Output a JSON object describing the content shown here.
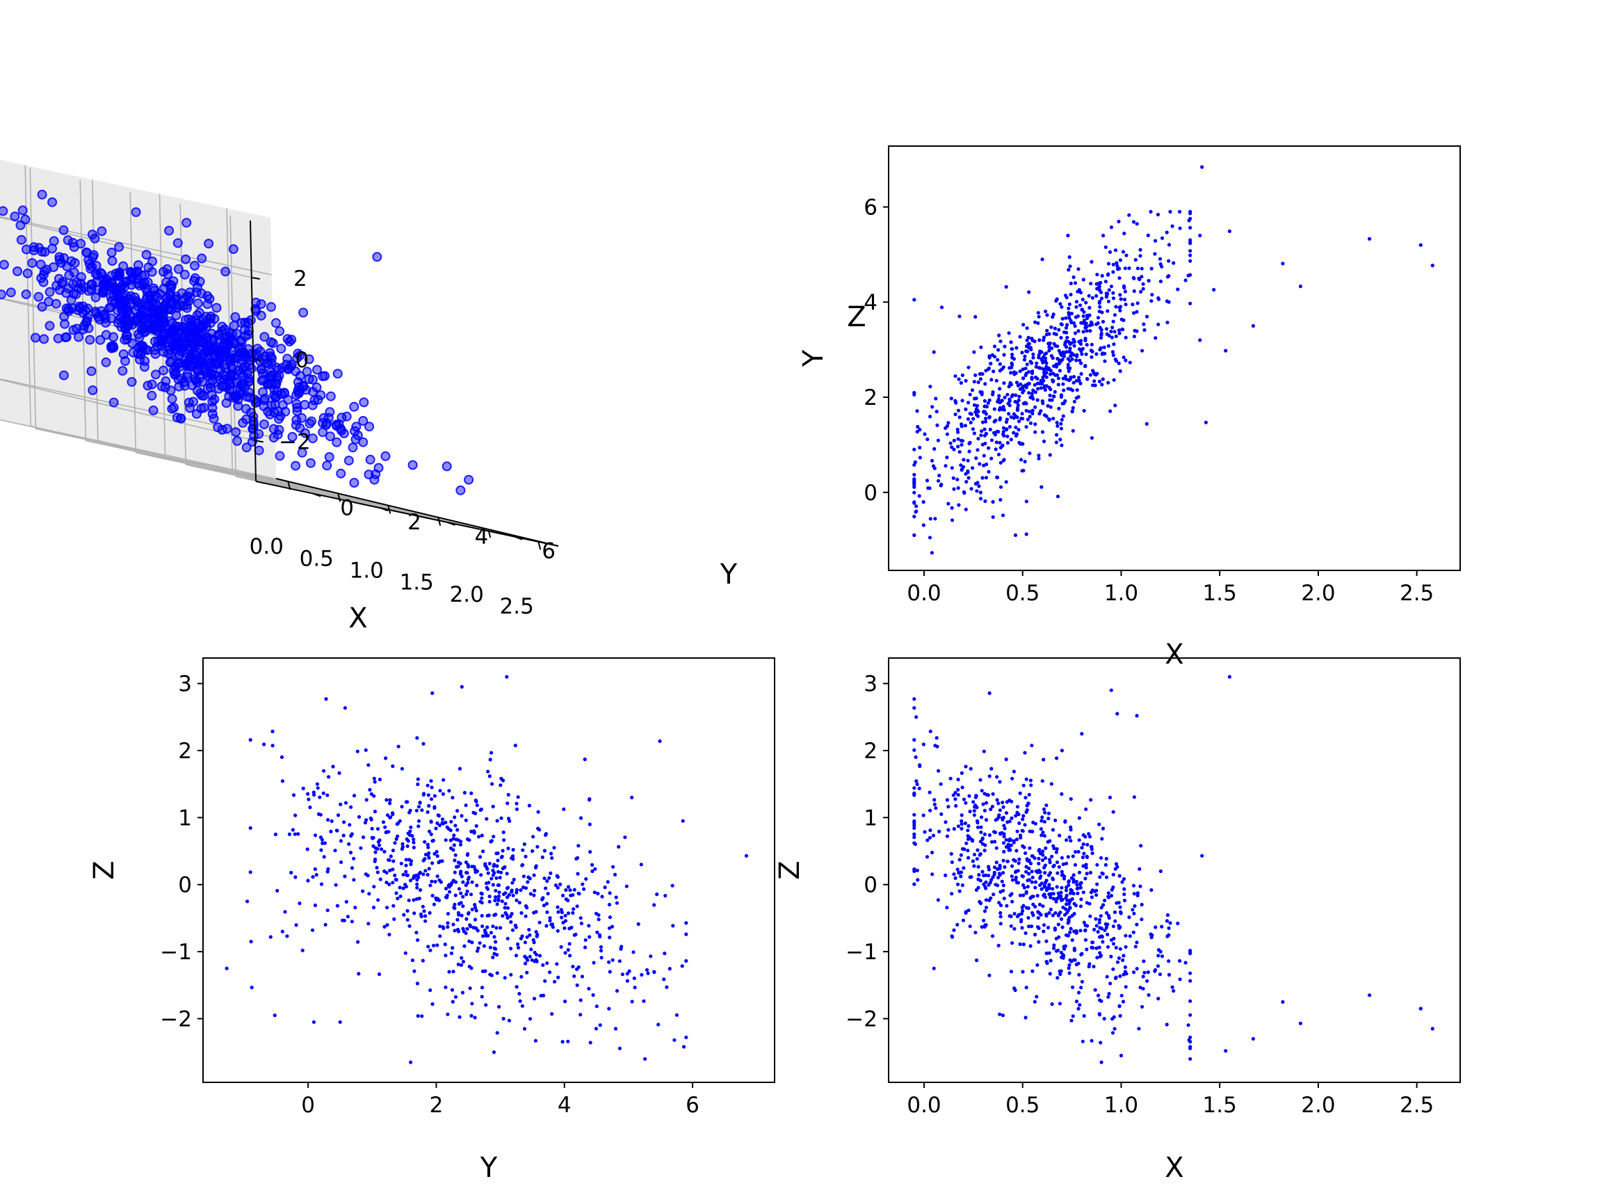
{
  "figure": {
    "background": "#ffffff",
    "point_color": "#0000ff",
    "axis_color": "#000000",
    "pane_color": "#f2f2f2",
    "grid_color": "#b0b0b0"
  },
  "chart_data": [
    {
      "id": "panel-3d",
      "type": "scatter",
      "projection": "3d",
      "title": "",
      "xlabel": "X",
      "ylabel": "Y",
      "zlabel": "Z",
      "xlim": [
        -0.12,
        2.7
      ],
      "ylim": [
        -1.7,
        7.3
      ],
      "zlim": [
        -3.0,
        3.4
      ],
      "xticks": [
        0.0,
        0.5,
        1.0,
        1.5,
        2.0,
        2.5
      ],
      "xtick_labels": [
        "0.0",
        "0.5",
        "1.0",
        "1.5",
        "2.0",
        "2.5"
      ],
      "yticks": [
        0,
        2,
        4,
        6
      ],
      "ytick_labels": [
        "0",
        "2",
        "4",
        "6"
      ],
      "zticks": [
        -2,
        0,
        2
      ],
      "ztick_labels": [
        "−2",
        "0",
        "2"
      ],
      "grid": true,
      "legend": "none",
      "series": [
        {
          "points": [
            [
              2.52,
              5.2,
              -1.85
            ],
            [
              2.58,
              4.77,
              -2.15
            ],
            [
              2.26,
              5.33,
              -1.65
            ],
            [
              1.91,
              4.33,
              -2.07
            ],
            [
              1.82,
              4.81,
              -1.75
            ],
            [
              1.67,
              3.5,
              -2.3
            ],
            [
              1.55,
              5.49,
              3.1
            ],
            [
              1.53,
              2.98,
              -2.48
            ],
            [
              1.43,
              1.47,
              0.43
            ],
            [
              1.41,
              6.84,
              -1.85
            ],
            [
              1.4,
              5.4,
              -1.55
            ],
            [
              1.27,
              5.0,
              -1.7
            ],
            [
              1.13,
              1.44,
              0.07
            ],
            [
              1.04,
              5.83,
              -1.4
            ],
            [
              0.98,
              2.9,
              2.5
            ],
            [
              0.95,
              1.6,
              2.9
            ],
            [
              0.9,
              2.4,
              2.5
            ],
            [
              0.35,
              1.1,
              -1.95
            ],
            [
              0.52,
              -0.03,
              -1.75
            ],
            [
              0.03,
              -0.95,
              0.2
            ],
            [
              0.04,
              -1.27,
              0.1
            ],
            [
              -0.05,
              4.05,
              2.55
            ],
            [
              0.09,
              3.89,
              2.3
            ],
            [
              -0.02,
              0.73,
              0.68
            ],
            [
              0.02,
              0.09,
              0.9
            ],
            [
              -0.04,
              -0.29,
              0.23
            ],
            [
              0.3,
              0.6,
              -1.3
            ],
            [
              0.7,
              5.35,
              0.5
            ],
            [
              0.6,
              4.9,
              0.0
            ],
            [
              0.8,
              3.3,
              -1.0
            ],
            [
              1.1,
              4.3,
              -1.5
            ],
            [
              0.45,
              2.5,
              1.5
            ],
            [
              0.2,
              1.8,
              1.9
            ],
            [
              0.25,
              3.7,
              -0.5
            ],
            [
              0.85,
              4.5,
              -0.2
            ],
            [
              1.2,
              4.8,
              -1.3
            ]
          ]
        }
      ]
    },
    {
      "id": "panel-xy",
      "type": "scatter",
      "title": "",
      "xlabel": "X",
      "ylabel": "Y",
      "xlim": [
        -0.18,
        2.72
      ],
      "ylim": [
        -1.64,
        7.28
      ],
      "xticks": [
        0.0,
        0.5,
        1.0,
        1.5,
        2.0,
        2.5
      ],
      "xtick_labels": [
        "0.0",
        "0.5",
        "1.0",
        "1.5",
        "2.0",
        "2.5"
      ],
      "yticks": [
        0,
        2,
        4,
        6
      ],
      "ytick_labels": [
        "0",
        "2",
        "4",
        "6"
      ],
      "grid": false,
      "legend": "none",
      "series": [
        {
          "points": [
            [
              1.41,
              6.84
            ],
            [
              2.26,
              5.33
            ],
            [
              2.52,
              5.2
            ],
            [
              2.58,
              4.77
            ],
            [
              1.55,
              5.49
            ],
            [
              1.82,
              4.81
            ],
            [
              1.91,
              4.33
            ],
            [
              1.67,
              3.5
            ],
            [
              1.53,
              2.98
            ],
            [
              1.4,
              5.4
            ],
            [
              1.47,
              4.26
            ],
            [
              1.43,
              1.47
            ],
            [
              1.13,
              1.44
            ],
            [
              1.04,
              5.83
            ],
            [
              -0.05,
              4.05
            ],
            [
              0.09,
              3.89
            ],
            [
              -0.02,
              0.73
            ],
            [
              0.02,
              0.09
            ],
            [
              -0.04,
              -0.29
            ],
            [
              0.03,
              -0.95
            ],
            [
              0.04,
              -1.27
            ],
            [
              0.35,
              -0.52
            ],
            [
              0.52,
              -0.19
            ],
            [
              0.05,
              2.95
            ],
            [
              0.18,
              3.7
            ],
            [
              0.73,
              5.4
            ],
            [
              0.6,
              4.9
            ],
            [
              1.2,
              4.8
            ],
            [
              0.26,
              3.69
            ],
            [
              1.4,
              3.2
            ]
          ]
        }
      ]
    },
    {
      "id": "panel-yz",
      "type": "scatter",
      "title": "",
      "xlabel": "Y",
      "ylabel": "Z",
      "xlim": [
        -1.64,
        7.28
      ],
      "ylim": [
        -2.95,
        3.38
      ],
      "xticks": [
        0,
        2,
        4,
        6
      ],
      "xtick_labels": [
        "0",
        "2",
        "4",
        "6"
      ],
      "yticks": [
        -2,
        -1,
        0,
        1,
        2,
        3
      ],
      "ytick_labels": [
        "−2",
        "−1",
        "0",
        "1",
        "2",
        "3"
      ],
      "grid": false,
      "legend": "none",
      "series": [
        {
          "points": [
            [
              6.84,
              0.43
            ],
            [
              5.85,
              0.95
            ],
            [
              5.49,
              2.14
            ],
            [
              -1.27,
              -1.25
            ],
            [
              -0.95,
              -0.25
            ],
            [
              -0.89,
              -0.85
            ],
            [
              -0.52,
              -1.95
            ],
            [
              -0.29,
              0.75
            ],
            [
              0.09,
              -2.05
            ],
            [
              3.1,
              3.1
            ],
            [
              2.4,
              2.95
            ],
            [
              1.6,
              -2.65
            ],
            [
              2.9,
              -2.5
            ],
            [
              5.4,
              -1.3
            ],
            [
              4.8,
              -2.15
            ],
            [
              1.0,
              0.7
            ],
            [
              3.5,
              0.5
            ],
            [
              2.6,
              -0.3
            ],
            [
              4.2,
              -1.5
            ],
            [
              0.5,
              -2.05
            ],
            [
              1.8,
              2.1
            ],
            [
              5.2,
              0.3
            ],
            [
              -0.4,
              -0.7
            ],
            [
              2.2,
              1.4
            ]
          ]
        }
      ]
    },
    {
      "id": "panel-xz",
      "type": "scatter",
      "title": "",
      "xlabel": "X",
      "ylabel": "Z",
      "xlim": [
        -0.18,
        2.72
      ],
      "ylim": [
        -2.95,
        3.38
      ],
      "xticks": [
        0.0,
        0.5,
        1.0,
        1.5,
        2.0,
        2.5
      ],
      "xtick_labels": [
        "0.0",
        "0.5",
        "1.0",
        "1.5",
        "2.0",
        "2.5"
      ],
      "yticks": [
        -2,
        -1,
        0,
        1,
        2,
        3
      ],
      "ytick_labels": [
        "−2",
        "−1",
        "0",
        "1",
        "2",
        "3"
      ],
      "grid": false,
      "legend": "none",
      "series": [
        {
          "points": [
            [
              1.55,
              3.1
            ],
            [
              2.58,
              -2.15
            ],
            [
              2.52,
              -1.85
            ],
            [
              2.26,
              -1.65
            ],
            [
              1.91,
              -2.07
            ],
            [
              1.82,
              -1.75
            ],
            [
              1.67,
              -2.3
            ],
            [
              1.53,
              -2.48
            ],
            [
              1.41,
              0.43
            ],
            [
              -0.04,
              2.5
            ],
            [
              0.95,
              2.9
            ],
            [
              0.98,
              2.55
            ],
            [
              1.08,
              2.52
            ],
            [
              0.8,
              2.25
            ],
            [
              0.7,
              2.0
            ],
            [
              -0.05,
              0.2
            ],
            [
              0.05,
              -1.25
            ],
            [
              0.03,
              0.7
            ],
            [
              0.9,
              -2.65
            ],
            [
              1.0,
              -2.55
            ],
            [
              0.4,
              -1.95
            ],
            [
              0.7,
              0.4
            ],
            [
              1.2,
              -1.0
            ],
            [
              0.3,
              1.2
            ]
          ]
        }
      ]
    }
  ]
}
